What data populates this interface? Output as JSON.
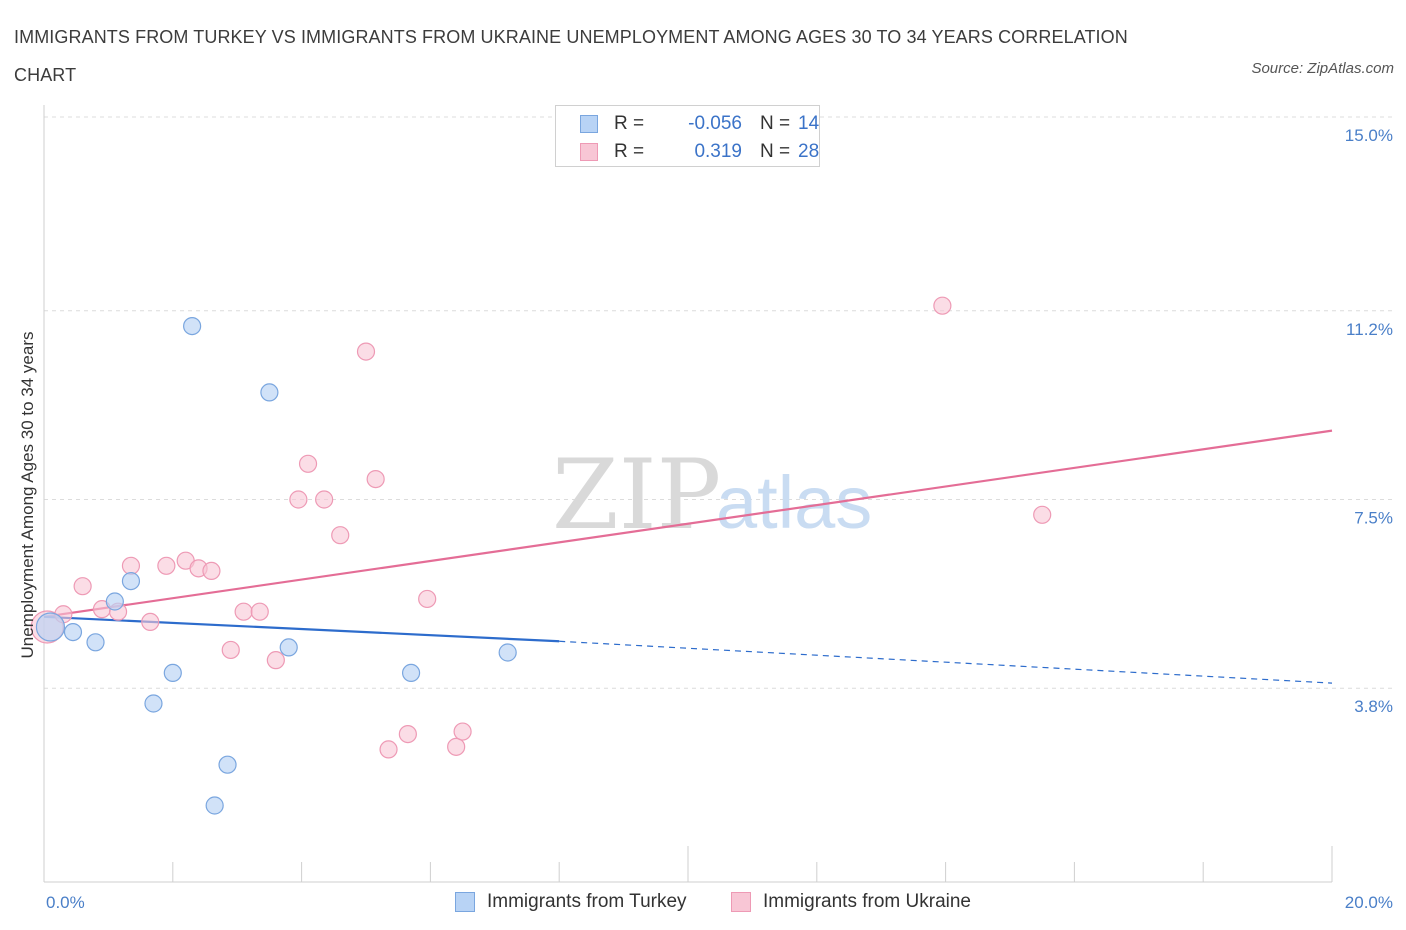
{
  "title": "IMMIGRANTS FROM TURKEY VS IMMIGRANTS FROM UKRAINE UNEMPLOYMENT AMONG AGES 30 TO 34 YEARS CORRELATION CHART",
  "source": "Source: ZipAtlas.com",
  "watermark": {
    "zip": "ZIP",
    "atlas": "atlas"
  },
  "colors": {
    "turkey_fill": "#b8d3f5",
    "turkey_stroke": "#7aa6df",
    "turkey_line": "#2d6ccc",
    "ukraine_fill": "#f8c6d5",
    "ukraine_stroke": "#ee9ab5",
    "ukraine_line": "#e46d96",
    "grid": "#dcdcdc",
    "tick_label": "#4a7fc8"
  },
  "legend": {
    "rows": [
      {
        "r_label": "R =",
        "r_value": "-0.056",
        "n_label": "N =",
        "n_value": "14"
      },
      {
        "r_label": "R =",
        "r_value": "0.319",
        "n_label": "N =",
        "n_value": "28"
      }
    ]
  },
  "bottom_legend": {
    "turkey": "Immigrants from Turkey",
    "ukraine": "Immigrants from Ukraine"
  },
  "chart_data": {
    "type": "scatter",
    "title": "IMMIGRANTS FROM TURKEY VS IMMIGRANTS FROM UKRAINE UNEMPLOYMENT AMONG AGES 30 TO 34 YEARS CORRELATION CHART",
    "xlabel": "",
    "ylabel": "Unemployment Among Ages 30 to 34 years",
    "xlim": [
      0,
      20
    ],
    "ylim": [
      0,
      15
    ],
    "x_tick_labels": [
      "0.0%",
      "20.0%"
    ],
    "y_ticks": [
      3.8,
      7.5,
      11.2,
      15.0
    ],
    "y_tick_labels": [
      "3.8%",
      "7.5%",
      "11.2%",
      "15.0%"
    ],
    "series": [
      {
        "name": "Immigrants from Turkey",
        "R": -0.056,
        "N": 14,
        "points": [
          [
            0.1,
            5.0
          ],
          [
            0.45,
            4.9
          ],
          [
            0.8,
            4.7
          ],
          [
            1.1,
            5.5
          ],
          [
            1.35,
            5.9
          ],
          [
            1.7,
            3.5
          ],
          [
            2.0,
            4.1
          ],
          [
            2.3,
            10.9
          ],
          [
            2.85,
            2.3
          ],
          [
            2.65,
            1.5
          ],
          [
            3.5,
            9.6
          ],
          [
            3.8,
            4.6
          ],
          [
            5.7,
            4.1
          ],
          [
            7.2,
            4.5
          ]
        ],
        "trend": {
          "x1": 0,
          "y1": 5.2,
          "x2": 8.0,
          "y2": 4.72,
          "dashed_to_x": 20.0,
          "dashed_to_y": 3.9
        }
      },
      {
        "name": "Immigrants from Ukraine",
        "R": 0.319,
        "N": 28,
        "points": [
          [
            0.05,
            5.0
          ],
          [
            0.3,
            5.25
          ],
          [
            0.6,
            5.8
          ],
          [
            0.9,
            5.35
          ],
          [
            1.15,
            5.3
          ],
          [
            1.35,
            6.2
          ],
          [
            1.65,
            5.1
          ],
          [
            1.9,
            6.2
          ],
          [
            2.2,
            6.3
          ],
          [
            2.4,
            6.15
          ],
          [
            2.6,
            6.1
          ],
          [
            2.9,
            4.55
          ],
          [
            3.1,
            5.3
          ],
          [
            3.35,
            5.3
          ],
          [
            3.6,
            4.35
          ],
          [
            3.95,
            7.5
          ],
          [
            4.1,
            8.2
          ],
          [
            4.35,
            7.5
          ],
          [
            4.6,
            6.8
          ],
          [
            5.0,
            10.4
          ],
          [
            5.15,
            7.9
          ],
          [
            5.35,
            2.6
          ],
          [
            5.65,
            2.9
          ],
          [
            5.95,
            5.55
          ],
          [
            6.4,
            2.65
          ],
          [
            6.5,
            2.95
          ],
          [
            13.95,
            11.3
          ],
          [
            15.5,
            7.2
          ]
        ],
        "trend": {
          "x1": 0,
          "y1": 5.2,
          "x2": 20.0,
          "y2": 8.85
        }
      }
    ]
  }
}
